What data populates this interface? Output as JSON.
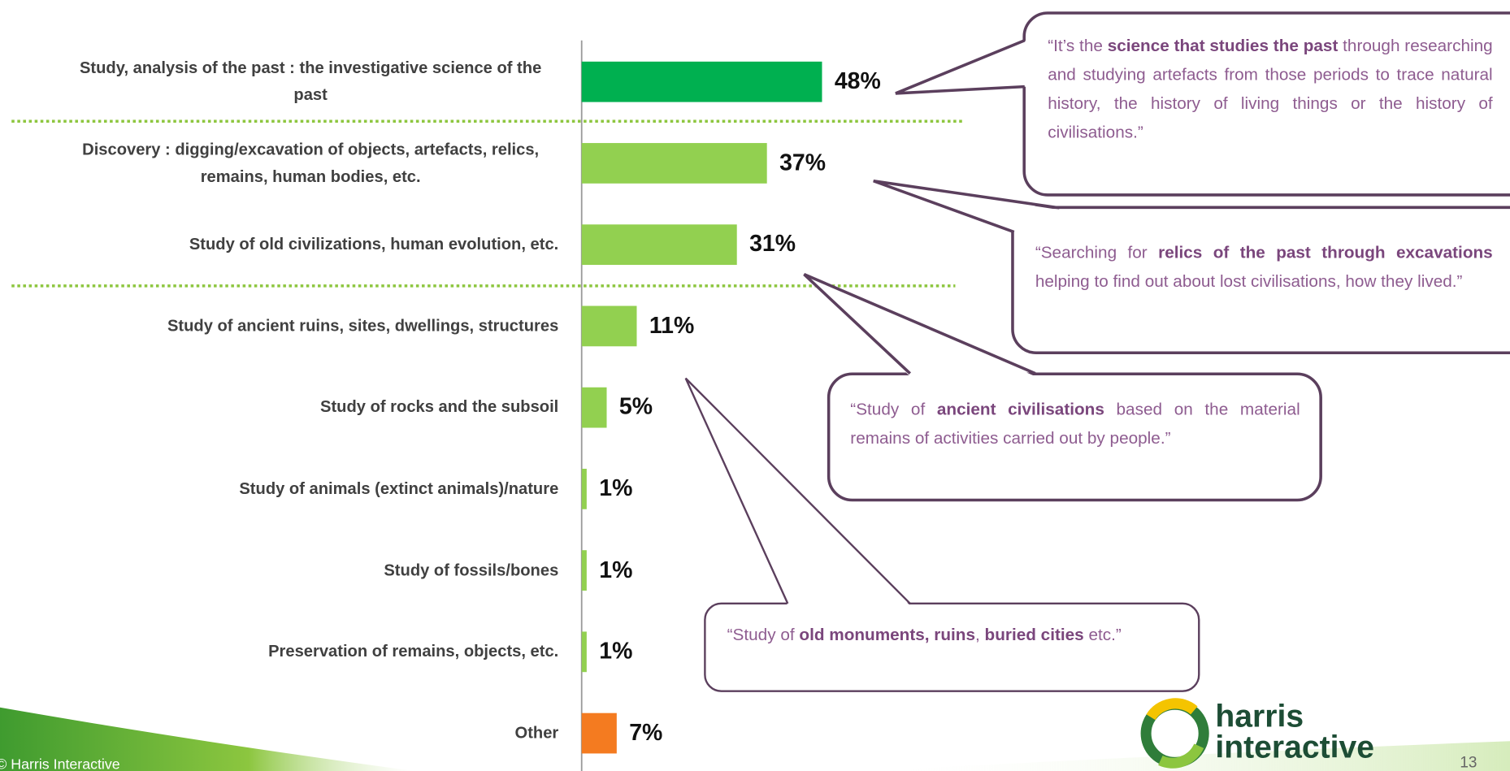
{
  "chart_data": {
    "type": "bar",
    "orientation": "horizontal",
    "categories": [
      "Study, analysis of the past : the investigative science of the past",
      "Discovery : digging/excavation of objects, artefacts, relics, remains, human bodies, etc.",
      "Study of old civilizations, human evolution, etc.",
      "Study of ancient ruins, sites, dwellings, structures",
      "Study of rocks and the subsoil",
      "Study of animals (extinct animals)/nature",
      "Study of fossils/bones",
      "Preservation of remains, objects, etc.",
      "Other"
    ],
    "values": [
      48,
      37,
      31,
      11,
      5,
      1,
      1,
      1,
      7
    ],
    "value_labels": [
      "48%",
      "37%",
      "31%",
      "11%",
      "5%",
      "1%",
      "1%",
      "1%",
      "7%"
    ],
    "colors": [
      "#00b050",
      "#92d050",
      "#92d050",
      "#92d050",
      "#92d050",
      "#92d050",
      "#92d050",
      "#92d050",
      "#f47b20"
    ]
  },
  "quotes": [
    {
      "parts": [
        {
          "text": "“It’s the ",
          "bold": false
        },
        {
          "text": "science that studies the past",
          "bold": true
        },
        {
          "text": " through researching and studying artefacts from those periods to trace natural history, the history of living things or the history of civilisations.”",
          "bold": false
        }
      ]
    },
    {
      "parts": [
        {
          "text": "“Searching for ",
          "bold": false
        },
        {
          "text": "relics of the past through excavations",
          "bold": true
        },
        {
          "text": " helping to find out about lost civilisations, how they lived.”",
          "bold": false
        }
      ]
    },
    {
      "parts": [
        {
          "text": "“Study of ",
          "bold": false
        },
        {
          "text": "ancient civilisations",
          "bold": true
        },
        {
          "text": " based on the material remains of activities carried out by people.”",
          "bold": false
        }
      ]
    },
    {
      "parts": [
        {
          "text": "“Study of ",
          "bold": false
        },
        {
          "text": "old monuments, ruins",
          "bold": true
        },
        {
          "text": ", ",
          "bold": false
        },
        {
          "text": "buried cities",
          "bold": true
        },
        {
          "text": " etc.”",
          "bold": false
        }
      ]
    }
  ],
  "footer": {
    "copyright": "© Harris Interactive",
    "logo": [
      "harris",
      "interactive"
    ],
    "page_number": "13"
  }
}
